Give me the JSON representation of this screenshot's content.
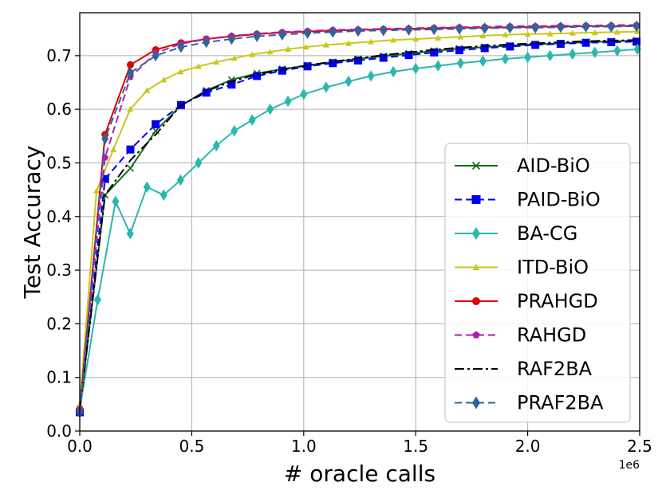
{
  "chart_data": {
    "type": "line",
    "title": "",
    "xlabel": "# oracle calls",
    "ylabel": "Test Accuracy",
    "x_offset_label": "1e6",
    "xlim": [
      0,
      2.5
    ],
    "ylim": [
      0,
      0.78
    ],
    "xticks": [
      0.0,
      0.5,
      1.0,
      1.5,
      2.0,
      2.5
    ],
    "xtick_labels": [
      "0.0",
      "0.5",
      "1.0",
      "1.5",
      "2.0",
      "2.5"
    ],
    "yticks": [
      0.0,
      0.1,
      0.2,
      0.3,
      0.4,
      0.5,
      0.6,
      0.7
    ],
    "ytick_labels": [
      "0.0",
      "0.1",
      "0.2",
      "0.3",
      "0.4",
      "0.5",
      "0.6",
      "0.7"
    ],
    "grid": true,
    "legend_position": "center-right",
    "series": [
      {
        "name": "AID-BiO",
        "color": "#1a6b1a",
        "dash": "solid",
        "marker": "x",
        "x": [
          0,
          0.113,
          0.226,
          0.339,
          0.452,
          0.565,
          0.678,
          0.791,
          0.904,
          1.017,
          1.13,
          1.243,
          1.356,
          1.469,
          1.582,
          1.695,
          1.808,
          1.921,
          2.034,
          2.147,
          2.26,
          2.373,
          2.486
        ],
        "y": [
          0.04,
          0.44,
          0.49,
          0.56,
          0.607,
          0.635,
          0.655,
          0.667,
          0.675,
          0.682,
          0.688,
          0.694,
          0.699,
          0.704,
          0.709,
          0.713,
          0.716,
          0.719,
          0.721,
          0.723,
          0.725,
          0.727,
          0.728
        ]
      },
      {
        "name": "PAID-BiO",
        "color": "#0000ee",
        "dash": "dashed",
        "marker": "square",
        "x": [
          0,
          0.113,
          0.226,
          0.339,
          0.452,
          0.565,
          0.678,
          0.791,
          0.904,
          1.017,
          1.13,
          1.243,
          1.356,
          1.469,
          1.582,
          1.695,
          1.808,
          1.921,
          2.034,
          2.147,
          2.26,
          2.373,
          2.486
        ],
        "y": [
          0.035,
          0.47,
          0.525,
          0.572,
          0.608,
          0.631,
          0.646,
          0.662,
          0.672,
          0.68,
          0.686,
          0.691,
          0.696,
          0.701,
          0.706,
          0.71,
          0.714,
          0.717,
          0.72,
          0.722,
          0.724,
          0.725,
          0.726
        ]
      },
      {
        "name": "BA-CG",
        "color": "#2ab7ae",
        "dash": "solid",
        "marker": "diamond",
        "x": [
          0,
          0.08,
          0.16,
          0.225,
          0.3,
          0.375,
          0.45,
          0.53,
          0.61,
          0.69,
          0.77,
          0.85,
          0.93,
          1.0,
          1.1,
          1.2,
          1.3,
          1.4,
          1.5,
          1.6,
          1.7,
          1.8,
          1.9,
          2.0,
          2.1,
          2.2,
          2.3,
          2.4,
          2.49
        ],
        "y": [
          0.04,
          0.245,
          0.428,
          0.368,
          0.455,
          0.44,
          0.468,
          0.5,
          0.532,
          0.56,
          0.58,
          0.6,
          0.615,
          0.628,
          0.641,
          0.652,
          0.662,
          0.67,
          0.676,
          0.681,
          0.686,
          0.69,
          0.694,
          0.697,
          0.7,
          0.703,
          0.706,
          0.709,
          0.712
        ]
      },
      {
        "name": "ITD-BiO",
        "color": "#c8c81e",
        "dash": "solid",
        "marker": "triangle",
        "x": [
          0,
          0.075,
          0.15,
          0.225,
          0.3,
          0.375,
          0.45,
          0.53,
          0.61,
          0.69,
          0.77,
          0.85,
          0.93,
          1.01,
          1.1,
          1.2,
          1.3,
          1.4,
          1.5,
          1.6,
          1.7,
          1.8,
          1.9,
          2.0,
          2.1,
          2.2,
          2.3,
          2.4,
          2.49
        ],
        "y": [
          0.05,
          0.448,
          0.525,
          0.6,
          0.635,
          0.655,
          0.67,
          0.68,
          0.688,
          0.695,
          0.702,
          0.707,
          0.712,
          0.716,
          0.72,
          0.723,
          0.726,
          0.729,
          0.731,
          0.733,
          0.735,
          0.737,
          0.739,
          0.74,
          0.741,
          0.742,
          0.743,
          0.744,
          0.745
        ]
      },
      {
        "name": "PRAHGD",
        "color": "#e00000",
        "dash": "solid",
        "marker": "circle",
        "x": [
          0,
          0.113,
          0.226,
          0.339,
          0.452,
          0.565,
          0.678,
          0.791,
          0.904,
          1.017,
          1.13,
          1.243,
          1.356,
          1.469,
          1.582,
          1.695,
          1.808,
          1.921,
          2.034,
          2.147,
          2.26,
          2.373,
          2.486
        ],
        "y": [
          0.04,
          0.553,
          0.683,
          0.711,
          0.724,
          0.731,
          0.736,
          0.74,
          0.743,
          0.745,
          0.747,
          0.748,
          0.749,
          0.75,
          0.751,
          0.752,
          0.752,
          0.753,
          0.754,
          0.754,
          0.755,
          0.755,
          0.756
        ]
      },
      {
        "name": "RAHGD",
        "color": "#b01eb0",
        "dash": "dashed",
        "marker": "pentagon",
        "x": [
          0,
          0.113,
          0.226,
          0.339,
          0.452,
          0.565,
          0.678,
          0.791,
          0.904,
          1.017,
          1.13,
          1.243,
          1.356,
          1.469,
          1.582,
          1.695,
          1.808,
          1.921,
          2.034,
          2.147,
          2.26,
          2.373,
          2.486
        ],
        "y": [
          0.04,
          0.51,
          0.66,
          0.705,
          0.722,
          0.731,
          0.737,
          0.741,
          0.744,
          0.746,
          0.748,
          0.749,
          0.75,
          0.751,
          0.752,
          0.753,
          0.754,
          0.755,
          0.755,
          0.756,
          0.756,
          0.757,
          0.757
        ]
      },
      {
        "name": "RAF2BA",
        "color": "#000000",
        "dash": "dashdot",
        "marker": "none",
        "x": [
          0,
          0.113,
          0.226,
          0.339,
          0.452,
          0.565,
          0.678,
          0.791,
          0.904,
          1.017,
          1.13,
          1.243,
          1.356,
          1.469,
          1.582,
          1.695,
          1.808,
          1.921,
          2.034,
          2.147,
          2.26,
          2.373,
          2.486
        ],
        "y": [
          0.04,
          0.44,
          0.505,
          0.553,
          0.607,
          0.634,
          0.652,
          0.665,
          0.674,
          0.682,
          0.689,
          0.695,
          0.701,
          0.706,
          0.711,
          0.715,
          0.718,
          0.721,
          0.723,
          0.725,
          0.727,
          0.728,
          0.729
        ]
      },
      {
        "name": "PRAF2BA",
        "color": "#2e6496",
        "dash": "dashed",
        "marker": "diamond",
        "x": [
          0,
          0.113,
          0.226,
          0.339,
          0.452,
          0.565,
          0.678,
          0.791,
          0.904,
          1.017,
          1.13,
          1.243,
          1.356,
          1.469,
          1.582,
          1.695,
          1.808,
          1.921,
          2.034,
          2.147,
          2.26,
          2.373,
          2.486
        ],
        "y": [
          0.035,
          0.545,
          0.668,
          0.7,
          0.716,
          0.725,
          0.731,
          0.736,
          0.739,
          0.742,
          0.744,
          0.746,
          0.747,
          0.748,
          0.749,
          0.75,
          0.751,
          0.752,
          0.752,
          0.753,
          0.754,
          0.754,
          0.755
        ]
      }
    ]
  }
}
